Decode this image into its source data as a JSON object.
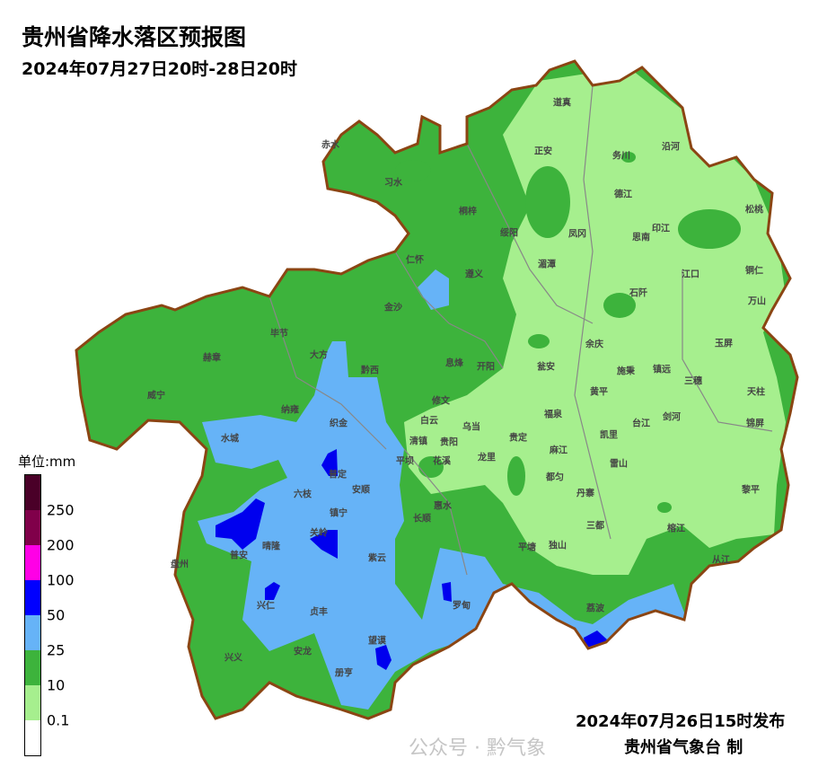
{
  "title": "贵州省降水落区预报图",
  "subtitle": "2024年07月27日20时-28日20时",
  "legend": {
    "unit": "单位:mm",
    "ticks": [
      "250",
      "200",
      "100",
      "50",
      "25",
      "10",
      "0.1"
    ],
    "colors": [
      "#4a0028",
      "#80004a",
      "#ff00e6",
      "#0000ff",
      "#66b3f7",
      "#3db33c",
      "#a6ef8e",
      "#ffffff"
    ]
  },
  "map": {
    "boundary_color": "#8b4513",
    "labels": [
      "赤水",
      "习水",
      "桐梓",
      "道真",
      "正安",
      "务川",
      "沿河",
      "德江",
      "松桃",
      "印江",
      "绥阳",
      "凤冈",
      "思南",
      "仁怀",
      "湄潭",
      "江口",
      "铜仁",
      "遵义",
      "石阡",
      "万山",
      "金沙",
      "毕节",
      "余庆",
      "玉屏",
      "大方",
      "赫章",
      "息烽",
      "开阳",
      "瓮安",
      "施秉",
      "镇远",
      "黔西",
      "三穗",
      "天柱",
      "威宁",
      "黄平",
      "修文",
      "纳雍",
      "织金",
      "福泉",
      "白云",
      "台江",
      "剑河",
      "乌当",
      "锦屏",
      "贵阳",
      "水城",
      "清镇",
      "凯里",
      "贵定",
      "麻江",
      "龙里",
      "花溪",
      "平坝",
      "普定",
      "雷山",
      "都匀",
      "安顺",
      "六枝",
      "黎平",
      "丹寨",
      "惠水",
      "镇宁",
      "长顺",
      "三都",
      "榕江",
      "关岭",
      "晴隆",
      "普安",
      "盘州",
      "紫云",
      "平塘",
      "独山",
      "从江",
      "兴仁",
      "贞丰",
      "罗甸",
      "荔波",
      "兴义",
      "安龙",
      "望谟",
      "册亨"
    ]
  },
  "footer": {
    "issued": "2024年07月26日15时发布",
    "maker": "贵州省气象台 制",
    "watermark": "公众号 · 黔气象"
  }
}
